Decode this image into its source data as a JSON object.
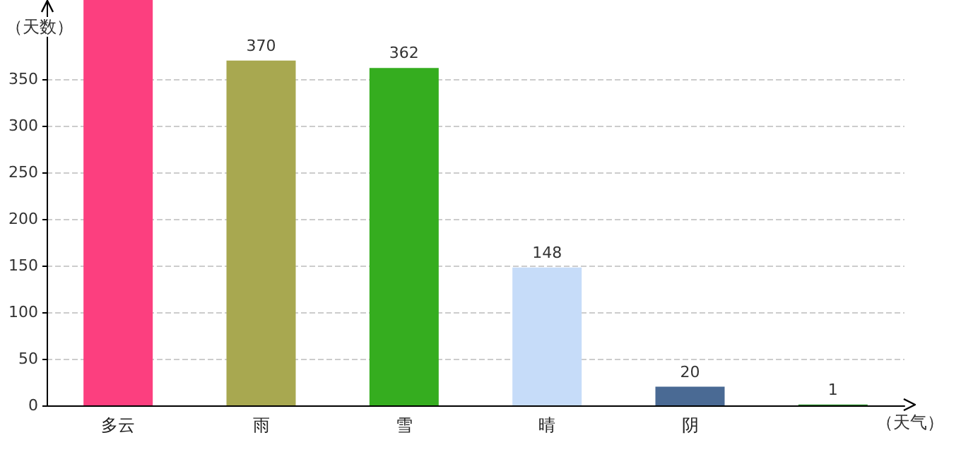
{
  "chart_data": {
    "type": "bar",
    "ylabel": "（天数）",
    "xlabel": "（天气）",
    "categories": [
      "多云",
      "雨",
      "雪",
      "晴",
      "阴",
      null
    ],
    "values": [
      435,
      370,
      362,
      148,
      20,
      1
    ],
    "colors": [
      "#fc3f7f",
      "#a8a850",
      "#35ad1f",
      "#c6dcf9",
      "#4a6a94",
      "#2f8f2f"
    ],
    "value_labels": [
      null,
      "370",
      "362",
      "148",
      "20",
      "1"
    ],
    "ylim": [
      0,
      435
    ],
    "yticks": [
      0,
      50,
      100,
      150,
      200,
      250,
      300,
      350
    ],
    "grid": "y"
  }
}
